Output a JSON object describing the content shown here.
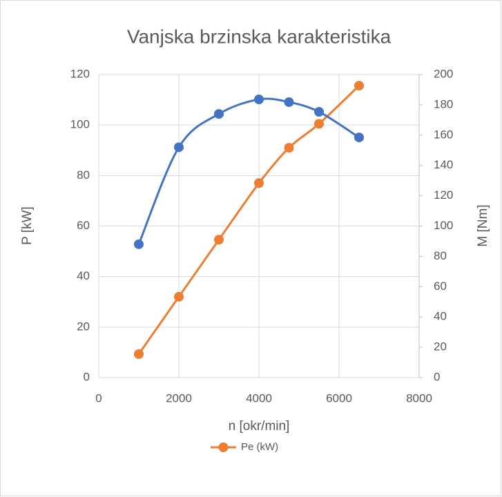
{
  "chart_data": {
    "type": "line",
    "title": "Vanjska brzinska karakteristika",
    "x_label": "n [okr/min]",
    "y_label": "P [kW]",
    "y2_label": "M [Nm]",
    "x": [
      1000,
      2000,
      3000,
      4000,
      4750,
      5500,
      6500
    ],
    "series": [
      {
        "name": "Pe (kW)",
        "color": "#ed7d31",
        "values": [
          9.3,
          32,
          54.6,
          77,
          91,
          100.5,
          115.6
        ]
      },
      {
        "color": "#4472c4",
        "axis": "y2",
        "values": [
          88,
          152,
          174,
          183.6,
          181.8,
          175.4,
          158.5
        ]
      }
    ],
    "xlim": [
      0,
      8000
    ],
    "xticks": [
      0,
      2000,
      4000,
      6000,
      8000
    ],
    "ylim": [
      0,
      120
    ],
    "yticks": [
      0,
      20,
      40,
      60,
      80,
      100,
      120
    ],
    "y2lim": [
      0,
      200
    ],
    "y2ticks": [
      0,
      20,
      40,
      60,
      80,
      100,
      120,
      140,
      160,
      180,
      200
    ],
    "grid": true,
    "smooth": true,
    "legend": "bottom"
  }
}
